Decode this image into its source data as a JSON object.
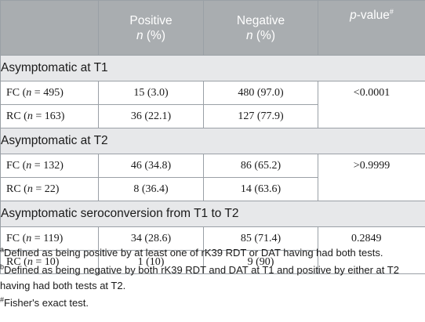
{
  "header": {
    "col0": "",
    "positive": "Positive",
    "negative": "Negative",
    "n_pct_n": "n",
    "n_pct_rest": " (%)",
    "pvalue_italic": "p",
    "pvalue_rest": "-value",
    "pvalue_mark": "#"
  },
  "sections": [
    {
      "title": "Asymptomatic at T1",
      "pvalue": "<0.0001",
      "rows": [
        {
          "pre": "FC (",
          "n": "n",
          "post": " = 495)",
          "positive": "15 (3.0)",
          "negative": "480 (97.0)"
        },
        {
          "pre": "RC (",
          "n": "n",
          "post": " = 163)",
          "positive": "36 (22.1)",
          "negative": "127 (77.9)"
        }
      ]
    },
    {
      "title": "Asymptomatic at T2",
      "pvalue": ">0.9999",
      "rows": [
        {
          "pre": "FC (",
          "n": "n",
          "post": " = 132)",
          "positive": "46 (34.8)",
          "negative": "86 (65.2)"
        },
        {
          "pre": "RC (",
          "n": "n",
          "post": " = 22)",
          "positive": "8 (36.4)",
          "negative": "14 (63.6)"
        }
      ]
    },
    {
      "title": "Asymptomatic seroconversion from T1 to T2",
      "pvalue": "0.2849",
      "rows": [
        {
          "pre": "FC (",
          "n": "n",
          "post": " = 119)",
          "positive": "34 (28.6)",
          "negative": "85 (71.4)"
        },
        {
          "pre": "RC (",
          "n": "n",
          "post": " = 10)",
          "positive": "1 (10)",
          "negative": "9 (90)"
        }
      ]
    }
  ],
  "footnotes": [
    {
      "mark": "a",
      "text": "Defined as being positive by at least one of rK39 RDT or DAT having had both tests."
    },
    {
      "mark": "b",
      "text": "Defined as being negative by both rK39 RDT and DAT at T1 and positive by either at T2 having had both tests at T2."
    },
    {
      "mark": "#",
      "text": "Fisher's exact test."
    }
  ]
}
